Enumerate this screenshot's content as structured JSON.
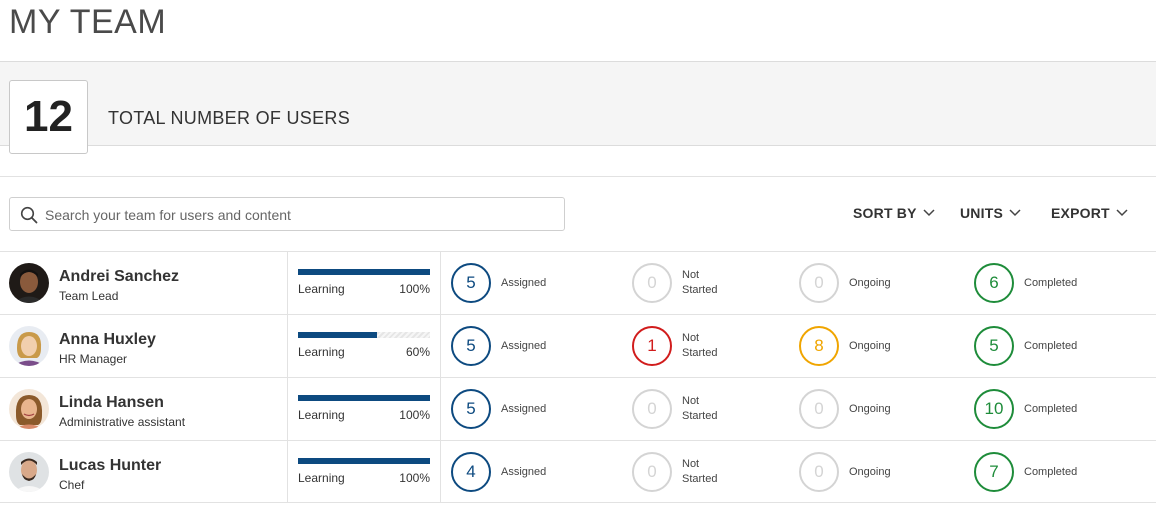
{
  "page": {
    "title": "MY TEAM"
  },
  "summary": {
    "count": "12",
    "label": "TOTAL NUMBER OF USERS"
  },
  "search": {
    "placeholder": "Search your team for users and content",
    "value": ""
  },
  "toolbar": {
    "sort_label": "SORT BY",
    "units_label": "UNITS",
    "export_label": "EXPORT"
  },
  "colors": {
    "assigned": "#0d4a80",
    "not_started_active": "#d11c1c",
    "ongoing_active": "#f0a500",
    "completed": "#1e8c3a",
    "inactive": "#d4d4d4",
    "progress": "#0d4a80"
  },
  "status_labels": {
    "assigned": "Assigned",
    "not_started_line1": "Not",
    "not_started_line2": "Started",
    "ongoing": "Ongoing",
    "completed": "Completed"
  },
  "users": [
    {
      "name": "Andrei Sanchez",
      "role": "Team Lead",
      "avatar": "avatar-andrei",
      "progress_label": "Learning",
      "progress_pct": "100%",
      "progress_value": 100,
      "assigned": "5",
      "not_started": "0",
      "ongoing": "0",
      "completed": "6"
    },
    {
      "name": "Anna Huxley",
      "role": "HR Manager",
      "avatar": "avatar-anna",
      "progress_label": "Learning",
      "progress_pct": "60%",
      "progress_value": 60,
      "assigned": "5",
      "not_started": "1",
      "ongoing": "8",
      "completed": "5"
    },
    {
      "name": "Linda Hansen",
      "role": "Administrative assistant",
      "avatar": "avatar-linda",
      "progress_label": "Learning",
      "progress_pct": "100%",
      "progress_value": 100,
      "assigned": "5",
      "not_started": "0",
      "ongoing": "0",
      "completed": "10"
    },
    {
      "name": "Lucas Hunter",
      "role": "Chef",
      "avatar": "avatar-lucas",
      "progress_label": "Learning",
      "progress_pct": "100%",
      "progress_value": 100,
      "assigned": "4",
      "not_started": "0",
      "ongoing": "0",
      "completed": "7"
    }
  ]
}
